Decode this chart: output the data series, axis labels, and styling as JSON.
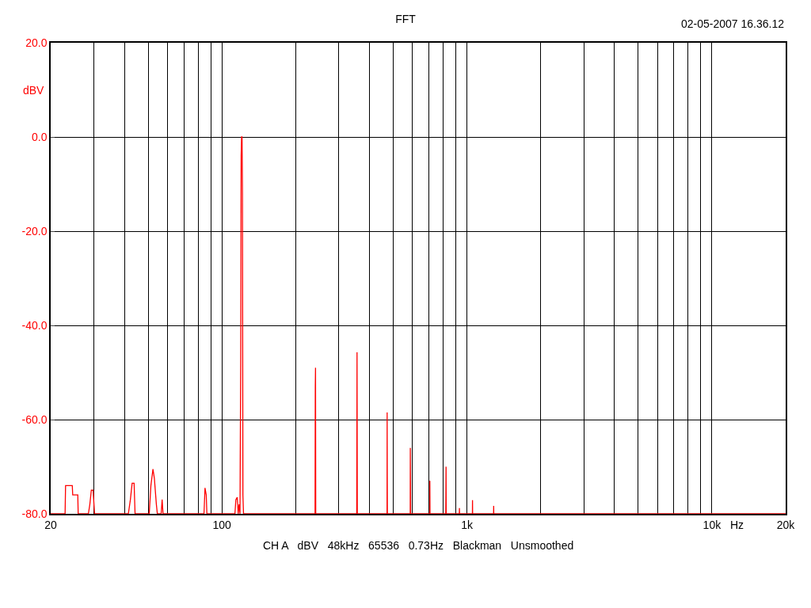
{
  "chart_data": {
    "type": "line",
    "title": "FFT",
    "xlabel": "Hz",
    "ylabel": "dBV",
    "annotations": [
      "02-05-2007 16.36.12",
      "CH A   dBV   48kHz   65536   0.73Hz   Blackman   Unsmoothed"
    ],
    "log": "x",
    "grid": true,
    "marker": "none",
    "line_style": "solid",
    "xlim": [
      20,
      20000
    ],
    "xticks": [
      20,
      {
        "value": 30,
        "label": null
      },
      {
        "value": 40,
        "label": null
      },
      {
        "value": 50,
        "label": null
      },
      {
        "value": 60,
        "label": null
      },
      {
        "value": 70,
        "label": null
      },
      {
        "value": 80,
        "label": null
      },
      {
        "value": 90,
        "label": null
      },
      100,
      {
        "value": 200,
        "label": null
      },
      {
        "value": 300,
        "label": null
      },
      {
        "value": 400,
        "label": null
      },
      {
        "value": 500,
        "label": null
      },
      {
        "value": 600,
        "label": null
      },
      {
        "value": 700,
        "label": null
      },
      {
        "value": 800,
        "label": null
      },
      {
        "value": 900,
        "label": null
      },
      {
        "value": 1000,
        "label": "1k"
      },
      {
        "value": 2000,
        "label": null
      },
      {
        "value": 3000,
        "label": null
      },
      {
        "value": 4000,
        "label": null
      },
      {
        "value": 5000,
        "label": null
      },
      {
        "value": 6000,
        "label": null
      },
      {
        "value": 7000,
        "label": null
      },
      {
        "value": 8000,
        "label": null
      },
      {
        "value": 9000,
        "label": null
      },
      {
        "value": 10000,
        "label": "10k"
      },
      {
        "value": 20000,
        "label": "20k"
      }
    ],
    "ylim": [
      -80,
      20
    ],
    "yticks": [
      {
        "value": 20,
        "label": "20.0"
      },
      {
        "value": 0,
        "label": "0.0"
      },
      {
        "value": -20,
        "label": "-20.0"
      },
      {
        "value": -40,
        "label": "-40.0"
      },
      {
        "value": -60,
        "label": "-60.0"
      },
      {
        "value": -80,
        "label": "-80.0"
      }
    ],
    "series": [
      {
        "color": "#ff0000",
        "x": [
          20,
          22.9,
          23.0,
          24.5,
          24.6,
          25.8,
          25.9,
          28.5,
          28.9,
          29.3,
          29.8,
          30.2,
          41.5,
          42.3,
          43.0,
          43.8,
          44.2,
          50.5,
          51.3,
          52.3,
          53.0,
          54.0,
          54.5,
          56.5,
          57.0,
          57.5,
          84.5,
          85.3,
          86.3,
          86.8,
          113,
          114,
          115.5,
          116.5,
          117.5,
          118.5,
          119.3,
          119.8,
          120.3,
          120.8,
          121.3,
          121.8,
          122.5,
          240,
          240.5,
          241,
          241.5,
          355,
          355.5,
          356,
          356.5,
          357,
          472,
          472.5,
          473,
          473.5,
          587,
          587.5,
          588.5,
          589,
          705,
          706,
          707,
          820,
          821,
          822,
          823,
          931,
          932,
          933,
          1053,
          1054,
          1055,
          1285,
          1286,
          1287,
          20000
        ],
        "values": [
          -80,
          -80,
          -74,
          -74,
          -76,
          -76,
          -80,
          -80,
          -78,
          -75,
          -75,
          -80,
          -80,
          -77,
          -73.5,
          -73.5,
          -80,
          -80,
          -74,
          -70.5,
          -72.5,
          -78,
          -80,
          -80,
          -77,
          -80,
          -80,
          -74.5,
          -76,
          -80,
          -80,
          -77,
          -76.5,
          -80,
          -78,
          -80,
          -48,
          -4,
          0,
          0,
          -12,
          -76,
          -80,
          -80,
          -53,
          -49,
          -80,
          -80,
          -65.5,
          -45.7,
          -65.5,
          -80,
          -80,
          -58.5,
          -71.8,
          -80,
          -80,
          -66,
          -73,
          -80,
          -80,
          -73,
          -80,
          -80,
          -76,
          -70,
          -80,
          -80,
          -78.8,
          -80,
          -80,
          -77.1,
          -80,
          -80,
          -78.3,
          -80,
          -80
        ]
      }
    ]
  }
}
